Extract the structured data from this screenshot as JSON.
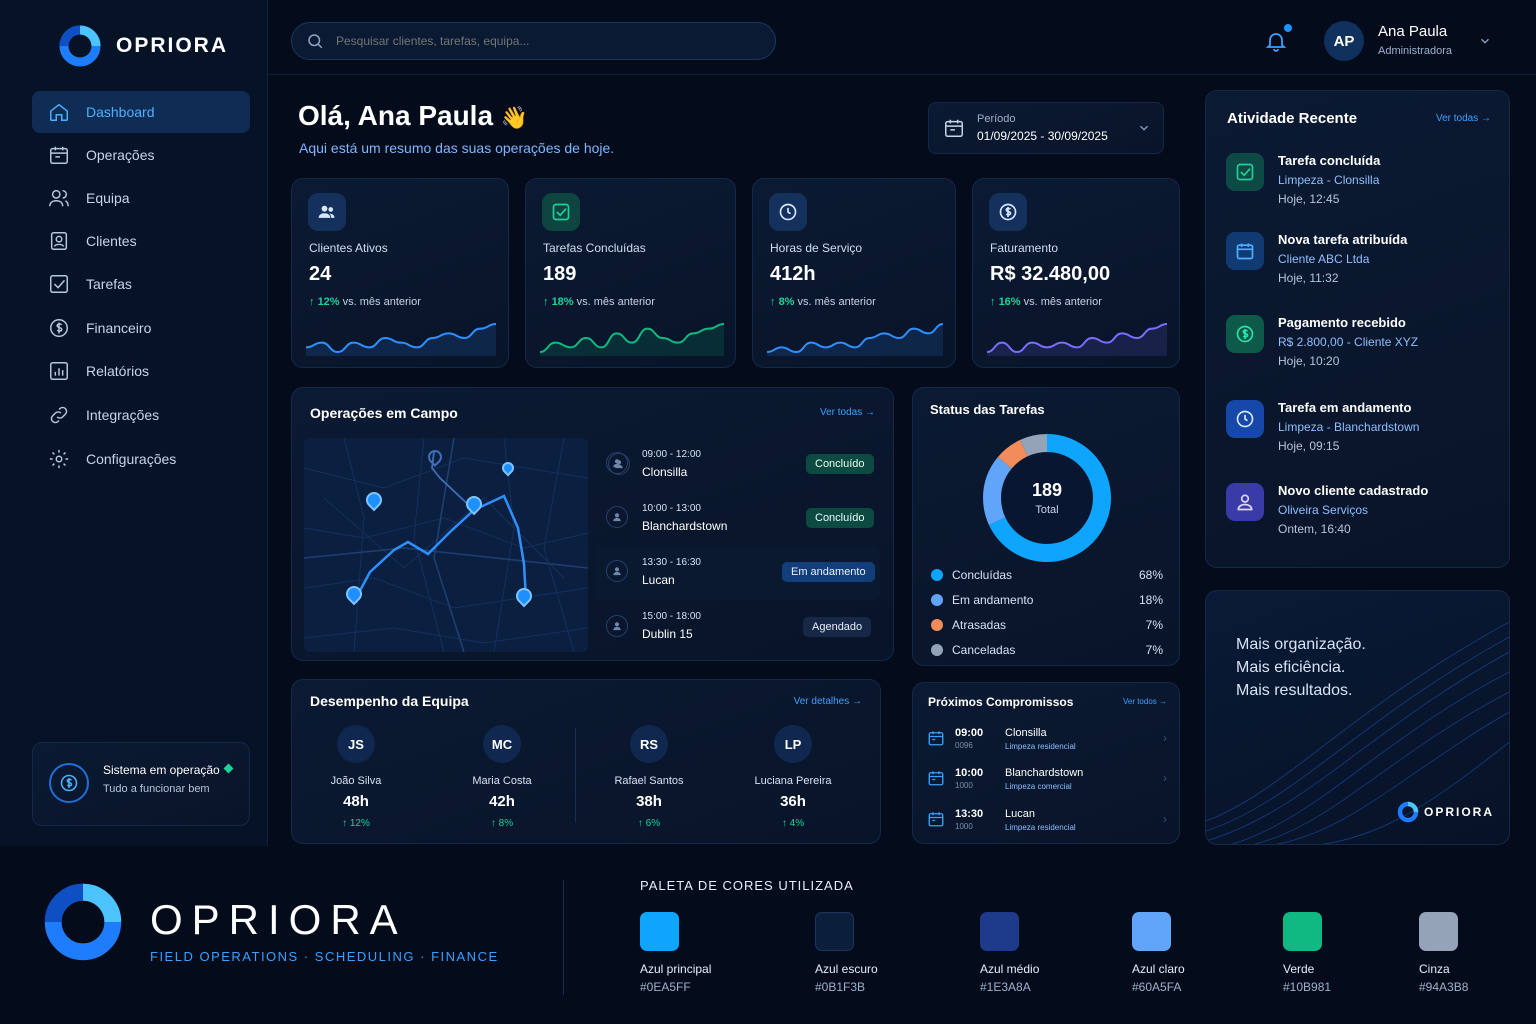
{
  "brand": {
    "name": "OPRIORA",
    "tagline": "FIELD OPERATIONS · SCHEDULING · FINANCE",
    "accent": "#0EA5FF"
  },
  "search": {
    "placeholder": "Pesquisar clientes, tarefas, equipa..."
  },
  "user": {
    "initials": "AP",
    "name": "Ana Paula",
    "role": "Administradora"
  },
  "sidebar": {
    "items": [
      {
        "label": "Dashboard",
        "icon": "home-icon",
        "active": true
      },
      {
        "label": "Operações",
        "icon": "calendar-icon"
      },
      {
        "label": "Equipa",
        "icon": "users-icon"
      },
      {
        "label": "Clientes",
        "icon": "contact-icon"
      },
      {
        "label": "Tarefas",
        "icon": "checkbox-icon"
      },
      {
        "label": "Financeiro",
        "icon": "dollar-icon"
      },
      {
        "label": "Relatórios",
        "icon": "report-icon"
      },
      {
        "label": "Integrações",
        "icon": "link-icon"
      },
      {
        "label": "Configurações",
        "icon": "gear-icon"
      }
    ],
    "status": {
      "title": "Sistema em operação",
      "subtitle": "Tudo a funcionar bem"
    }
  },
  "greeting": {
    "title": "Olá, Ana Paula",
    "emoji": "👋",
    "subtitle": "Aqui está um resumo das suas operações de hoje."
  },
  "period": {
    "label": "Período",
    "value": "01/09/2025 - 30/09/2025"
  },
  "kpis": [
    {
      "label": "Clientes Ativos",
      "value": "24",
      "delta": "12%",
      "delta_suffix": "vs. mês anterior",
      "color": "#2f8fff",
      "trend": [
        5,
        6,
        4,
        6,
        5,
        7,
        6,
        5,
        7,
        8,
        7,
        9,
        10
      ]
    },
    {
      "label": "Tarefas Concluídas",
      "value": "189",
      "delta": "18%",
      "delta_suffix": "vs. mês anterior",
      "color": "#10B981",
      "trend": [
        4,
        6,
        5,
        7,
        5,
        8,
        6,
        9,
        7,
        6,
        8,
        9,
        10
      ]
    },
    {
      "label": "Horas de Serviço",
      "value": "412h",
      "delta": "8%",
      "delta_suffix": "vs. mês anterior",
      "color": "#2f8fff",
      "trend": [
        4,
        5,
        4,
        6,
        5,
        6,
        5,
        7,
        8,
        7,
        9,
        8,
        10
      ]
    },
    {
      "label": "Faturamento",
      "value": "R$ 32.480,00",
      "delta": "16%",
      "delta_suffix": "vs. mês anterior",
      "color": "#7c6cff",
      "trend": [
        4,
        6,
        4,
        6,
        5,
        6,
        5,
        7,
        6,
        8,
        7,
        9,
        10
      ]
    }
  ],
  "field_ops": {
    "title": "Operações em Campo",
    "link": "Ver todas →",
    "rows": [
      {
        "time": "09:00 - 12:00",
        "place": "Clonsilla",
        "status": "Concluído",
        "kind": "done"
      },
      {
        "time": "10:00 - 13:00",
        "place": "Blanchardstown",
        "status": "Concluído",
        "kind": "done"
      },
      {
        "time": "13:30 - 16:30",
        "place": "Lucan",
        "status": "Em andamento",
        "kind": "progress"
      },
      {
        "time": "15:00 - 18:00",
        "place": "Dublin 15",
        "status": "Agendado",
        "kind": "scheduled"
      }
    ]
  },
  "task_status": {
    "title": "Status das Tarefas",
    "total": "189",
    "total_label": "Total",
    "slices": [
      {
        "name": "Concluídas",
        "pct": 68,
        "label": "68%",
        "color": "#0EA5FF"
      },
      {
        "name": "Em andamento",
        "pct": 18,
        "label": "18%",
        "color": "#60A5FA"
      },
      {
        "name": "Atrasadas",
        "pct": 7,
        "label": "7%",
        "color": "#F28C5A"
      },
      {
        "name": "Canceladas",
        "pct": 7,
        "label": "7%",
        "color": "#94A3B8"
      }
    ]
  },
  "recent": {
    "title": "Atividade Recente",
    "link": "Ver todas →",
    "items": [
      {
        "title": "Tarefa concluída",
        "sub": "Limpeza - Clonsilla",
        "date": "Hoje, 12:45",
        "icon": "check-icon",
        "bg": "#0e4a45",
        "fg": "#19d39a"
      },
      {
        "title": "Nova tarefa atribuída",
        "sub": "Cliente ABC Ltda",
        "date": "Hoje, 11:32",
        "icon": "calendar-icon",
        "bg": "#123a72",
        "fg": "#4db0ff"
      },
      {
        "title": "Pagamento recebido",
        "sub": "R$ 2.800,00 - Cliente XYZ",
        "date": "Hoje, 10:20",
        "icon": "dollar-icon",
        "bg": "#0e5a4a",
        "fg": "#2ee0a8"
      },
      {
        "title": "Tarefa em andamento",
        "sub": "Limpeza - Blanchardstown",
        "date": "Hoje, 09:15",
        "icon": "clock-icon",
        "bg": "#1548a8",
        "fg": "#d6e6ff"
      },
      {
        "title": "Novo cliente cadastrado",
        "sub": "Oliveira Serviços",
        "date": "Ontem, 16:40",
        "icon": "user-icon",
        "bg": "#3a3aa8",
        "fg": "#dcd6ff"
      }
    ]
  },
  "promo": {
    "lines": [
      "Mais organização.",
      "Mais eficiência.",
      "Mais resultados."
    ]
  },
  "team": {
    "title": "Desempenho da Equipa",
    "link": "Ver detalhes →",
    "members": [
      {
        "initials": "JS",
        "name": "João Silva",
        "hours": "48h",
        "delta": "↑ 12%"
      },
      {
        "initials": "MC",
        "name": "Maria Costa",
        "hours": "42h",
        "delta": "↑ 8%"
      },
      {
        "initials": "RS",
        "name": "Rafael Santos",
        "hours": "38h",
        "delta": "↑ 6%"
      },
      {
        "initials": "LP",
        "name": "Luciana Pereira",
        "hours": "36h",
        "delta": "↑ 4%"
      }
    ]
  },
  "appointments": {
    "title": "Próximos Compromissos",
    "link": "Ver todos →",
    "items": [
      {
        "time": "09:00",
        "time2": "0096",
        "place": "Clonsilla",
        "type": "Limpeza residencial"
      },
      {
        "time": "10:00",
        "time2": "1000",
        "place": "Blanchardstown",
        "type": "Limpeza comercial"
      },
      {
        "time": "13:30",
        "time2": "1000",
        "place": "Lucan",
        "type": "Limpeza residencial"
      }
    ]
  },
  "palette": {
    "title": "PALETA DE CORES UTILIZADA",
    "colors": [
      {
        "name": "Azul principal",
        "hex": "#0EA5FF"
      },
      {
        "name": "Azul escuro",
        "hex": "#0B1F3B"
      },
      {
        "name": "Azul médio",
        "hex": "#1E3A8A"
      },
      {
        "name": "Azul claro",
        "hex": "#60A5FA"
      },
      {
        "name": "Verde",
        "hex": "#10B981"
      },
      {
        "name": "Cinza",
        "hex": "#94A3B8"
      }
    ]
  }
}
